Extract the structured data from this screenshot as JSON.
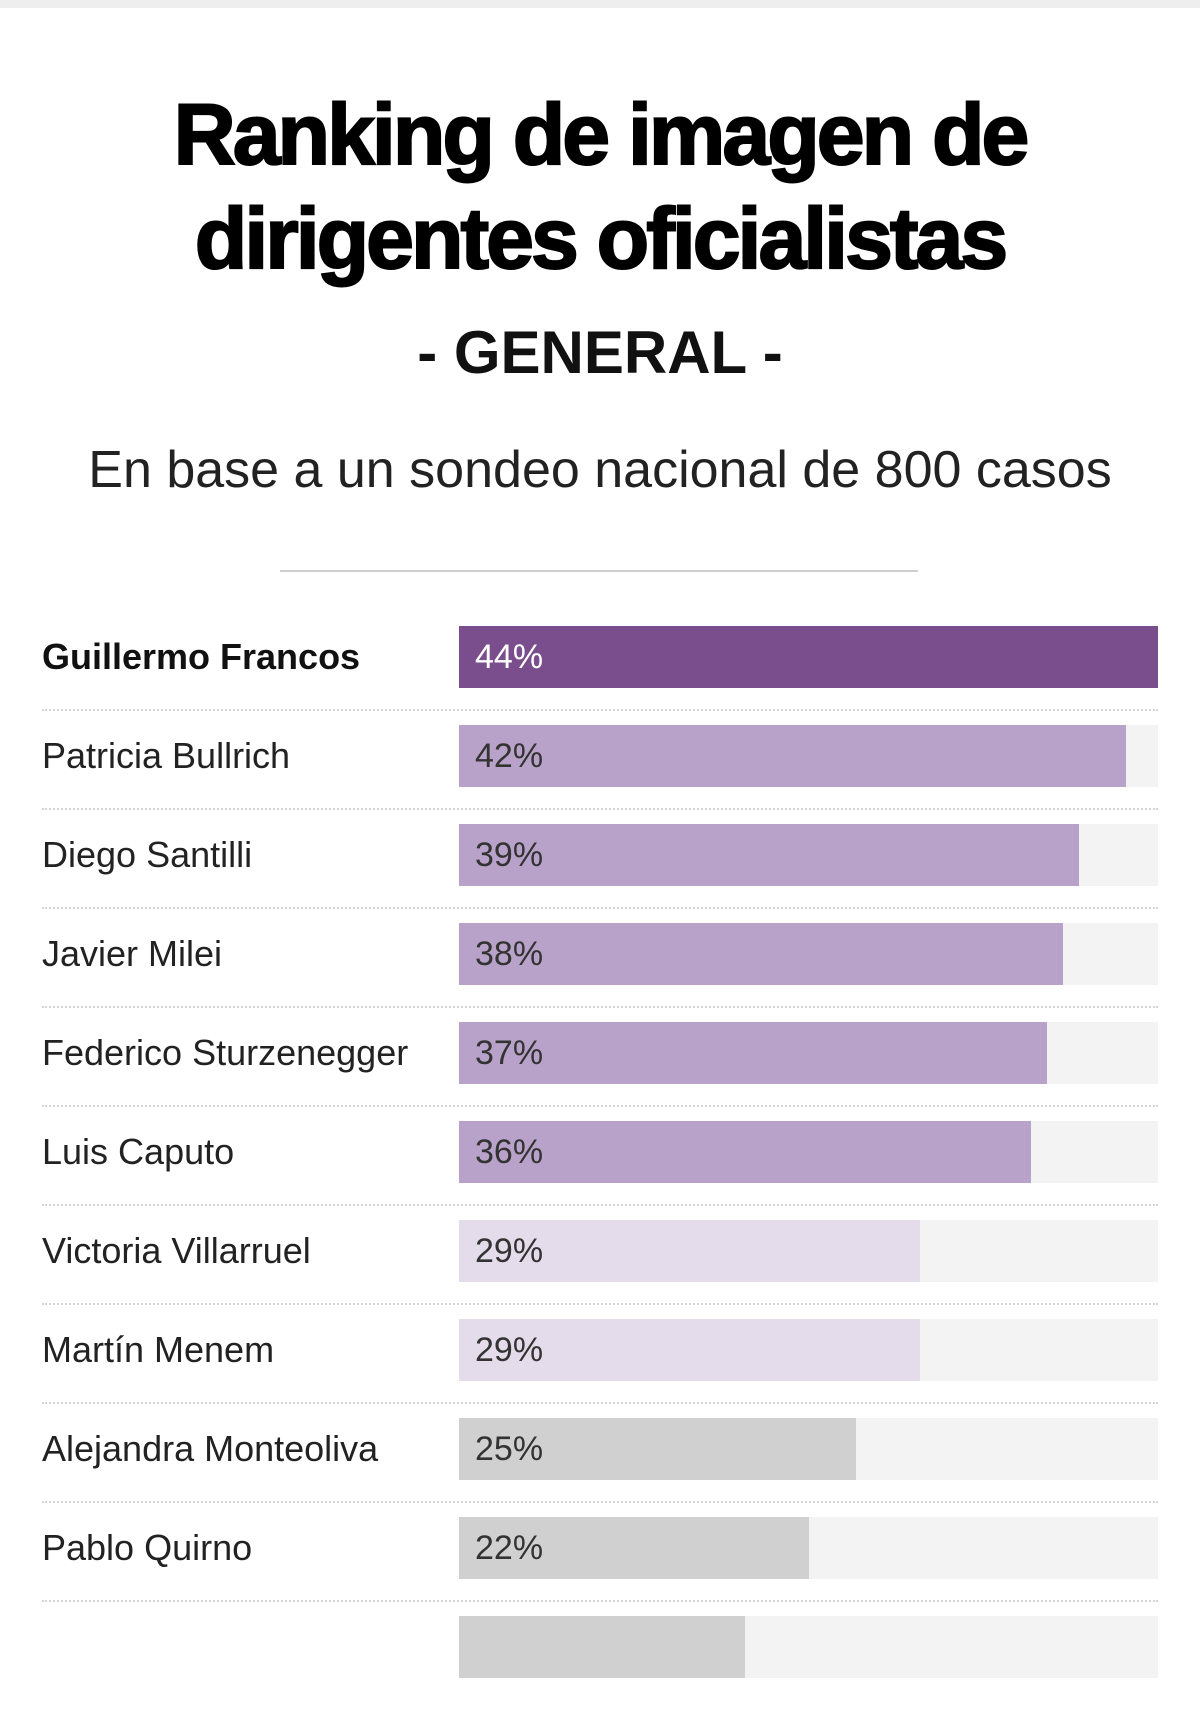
{
  "title_line1": "Ranking de imagen de",
  "title_line2": "dirigentes oficialistas",
  "section": "- GENERAL -",
  "subtitle": "En base a un sondeo nacional de 800 casos",
  "colors": {
    "dark": "#7a4d8c",
    "mid": "#b9a2c9",
    "light": "#e4dcea",
    "grey": "#d0d0d0",
    "track": "#f3f3f3"
  },
  "chart_data": {
    "type": "bar",
    "orientation": "horizontal",
    "title": "Ranking de imagen de dirigentes oficialistas - GENERAL -",
    "subtitle": "En base a un sondeo nacional de 800 casos",
    "max": 44,
    "categories": [
      "Guillermo Francos",
      "Patricia Bullrich",
      "Diego Santilli",
      "Javier Milei",
      "Federico Sturzenegger",
      "Luis Caputo",
      "Victoria Villarruel",
      "Martín Menem",
      "Alejandra Monteoliva",
      "Pablo Quirno"
    ],
    "values": [
      44,
      42,
      39,
      38,
      37,
      36,
      29,
      29,
      25,
      22
    ],
    "labels": [
      "44%",
      "42%",
      "39%",
      "38%",
      "37%",
      "36%",
      "29%",
      "29%",
      "25%",
      "22%"
    ],
    "tiers": [
      "dark",
      "mid",
      "mid",
      "mid",
      "mid",
      "mid",
      "light",
      "light",
      "grey",
      "grey"
    ],
    "partial_next_value": 18
  }
}
